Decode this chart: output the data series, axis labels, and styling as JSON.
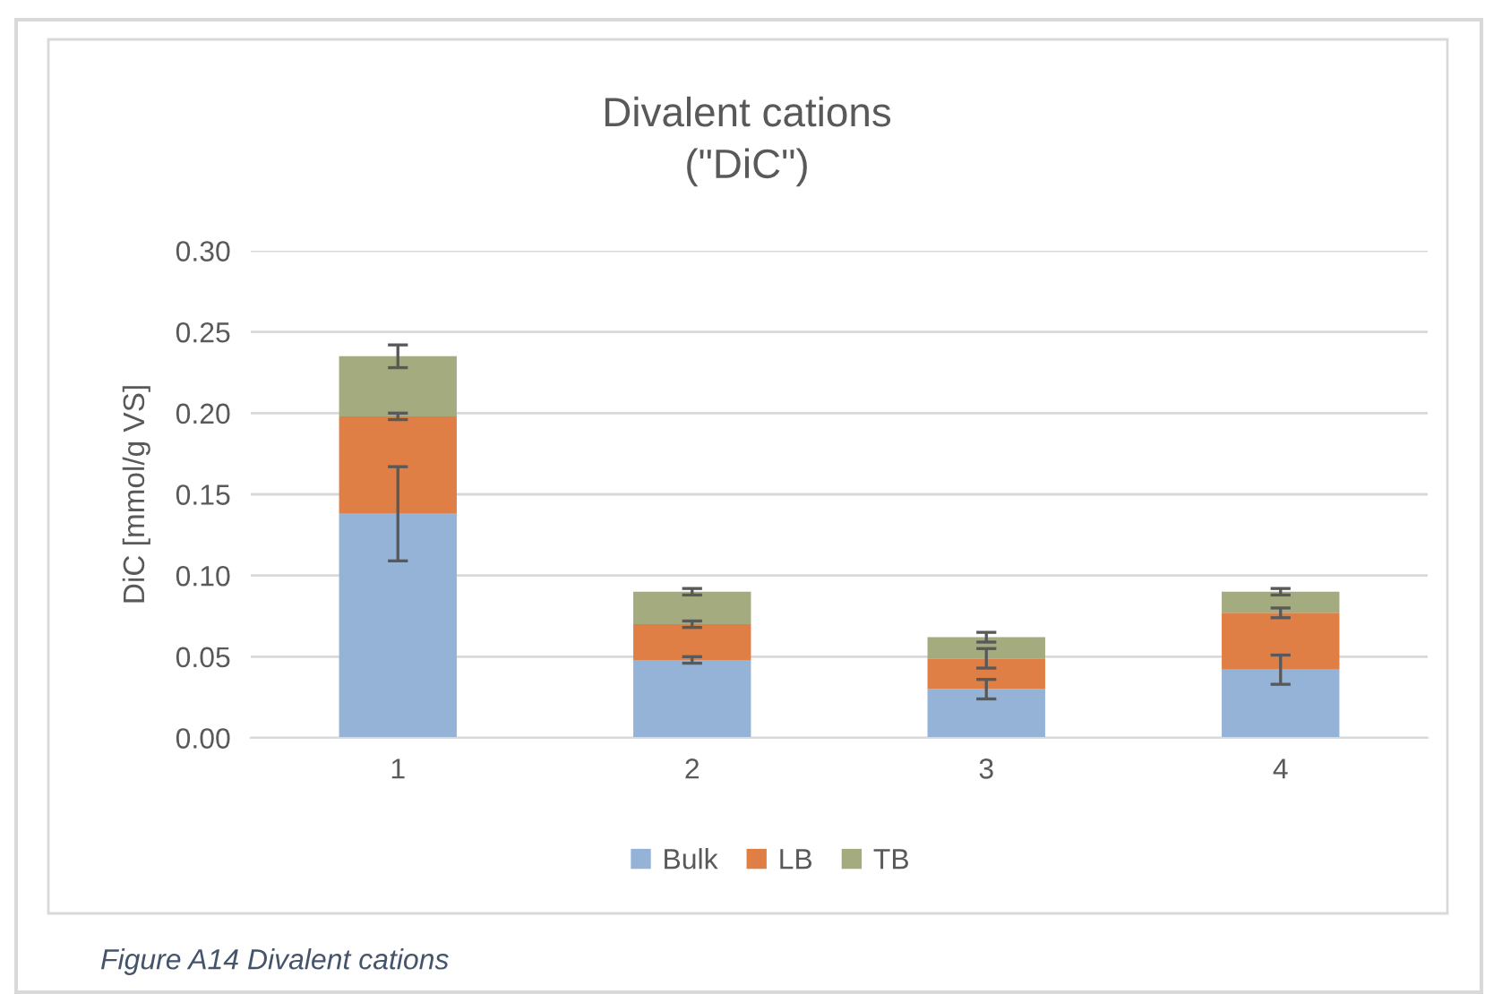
{
  "chart_data": {
    "type": "bar",
    "title": "Divalent cations\n(\"DiC\")",
    "ylabel": "DiC [mmol/g VS]",
    "categories": [
      "1",
      "2",
      "3",
      "4"
    ],
    "stacked": true,
    "series": [
      {
        "name": "Bulk",
        "color": "#95b3d7",
        "values": [
          0.138,
          0.048,
          0.03,
          0.042
        ],
        "errors": [
          0.029,
          0.002,
          0.006,
          0.009
        ]
      },
      {
        "name": "LB",
        "color": "#e07f45",
        "values": [
          0.06,
          0.022,
          0.019,
          0.035
        ],
        "errors": [
          0.002,
          0.002,
          0.006,
          0.003
        ]
      },
      {
        "name": "TB",
        "color": "#a4ab7f",
        "values": [
          0.037,
          0.02,
          0.013,
          0.013
        ],
        "errors": [
          0.007,
          0.002,
          0.003,
          0.002
        ]
      }
    ],
    "ylim": [
      0,
      0.3
    ],
    "yticks": [
      {
        "value": 0,
        "label": "0.00"
      },
      {
        "value": 0.05,
        "label": "0.05"
      },
      {
        "value": 0.1,
        "label": "0.10"
      },
      {
        "value": 0.15,
        "label": "0.15"
      },
      {
        "value": 0.2,
        "label": "0.20"
      },
      {
        "value": 0.25,
        "label": "0.25"
      },
      {
        "value": 0.3,
        "label": "0.30"
      }
    ],
    "grid": "y",
    "legend": "bottom",
    "annotations": [
      "Figure A14 Divalent cations"
    ]
  }
}
